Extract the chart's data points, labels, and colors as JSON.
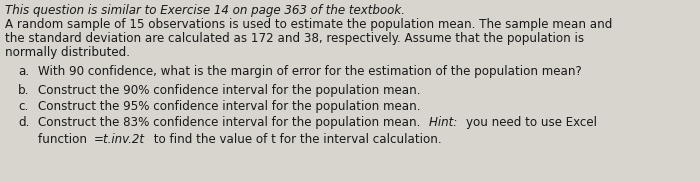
{
  "background_color": "#d8d4ce",
  "text_color": "#1a1a1a",
  "line1": "This question is similar to Exercise 14 on page 363 of the textbook.",
  "line2": "A random sample of 15 observations is used to estimate the population mean. The sample mean and",
  "line3": "the standard deviation are calculated as 172 and 38, respectively. Assume that the population is",
  "line4": "normally distributed.",
  "item_a_label": "a.",
  "item_a_text": "With 90 confidence, what is the margin of error for the estimation of the population mean?",
  "item_b_label": "b.",
  "item_b_text": "Construct the 90% confidence interval for the population mean.",
  "item_c_label": "c.",
  "item_c_text": "Construct the 95% confidence interval for the population mean.",
  "item_d_label": "d.",
  "item_d_text1": "Construct the 83% confidence interval for the population mean. ",
  "item_d_hint": "Hint: ",
  "item_d_text2": "you need to use Excel",
  "item_d_text3": "function ",
  "item_d_func": "=t.inv.2t",
  "item_d_text4": " to find the value of t for the interval calculation.",
  "font_size": 8.6,
  "font_family": "DejaVu Sans"
}
